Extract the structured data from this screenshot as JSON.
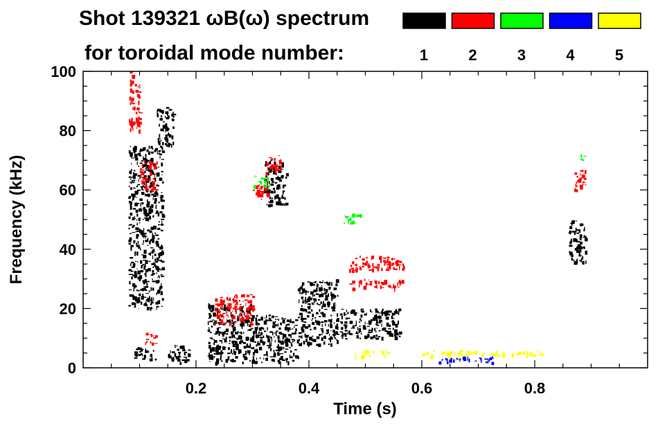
{
  "chart_data": {
    "type": "heatmap",
    "title": "Shot 139321 ωB(ω) spectrum",
    "subtitle": "for toroidal mode number:",
    "xlabel": "Time (s)",
    "ylabel": "Frequency (kHz)",
    "xlim": [
      0.0,
      1.0
    ],
    "ylim": [
      0,
      100
    ],
    "x_ticks": [
      0.2,
      0.4,
      0.6,
      0.8
    ],
    "x_tick_labels": [
      "0.2",
      "0.4",
      "0.6",
      "0.8"
    ],
    "y_ticks": [
      0,
      20,
      40,
      60,
      80,
      100
    ],
    "y_tick_labels": [
      "0",
      "20",
      "40",
      "60",
      "80",
      "100"
    ],
    "grid": false,
    "legend_placement": "top-right",
    "legend": [
      {
        "name": "1",
        "color": "#000000"
      },
      {
        "name": "2",
        "color": "#ff0000"
      },
      {
        "name": "3",
        "color": "#00ff00"
      },
      {
        "name": "4",
        "color": "#0000ff"
      },
      {
        "name": "5",
        "color": "#ffff00"
      }
    ],
    "series": [
      {
        "name": "1",
        "color": "#000000",
        "regions": [
          {
            "t": [
              0.08,
              0.14
            ],
            "f": [
              20,
              75
            ]
          },
          {
            "t": [
              0.13,
              0.16
            ],
            "f": [
              75,
              88
            ]
          },
          {
            "t": [
              0.09,
              0.13
            ],
            "f": [
              3,
              7
            ]
          },
          {
            "t": [
              0.15,
              0.19
            ],
            "f": [
              2,
              8
            ]
          },
          {
            "t": [
              0.22,
              0.3
            ],
            "f": [
              2,
              22
            ]
          },
          {
            "t": [
              0.3,
              0.38
            ],
            "f": [
              2,
              18
            ]
          },
          {
            "t": [
              0.38,
              0.45
            ],
            "f": [
              8,
              30
            ]
          },
          {
            "t": [
              0.45,
              0.56
            ],
            "f": [
              10,
              20
            ]
          },
          {
            "t": [
              0.32,
              0.36
            ],
            "f": [
              55,
              70
            ]
          },
          {
            "t": [
              0.86,
              0.89
            ],
            "f": [
              35,
              50
            ]
          }
        ]
      },
      {
        "name": "2",
        "color": "#ff0000",
        "regions": [
          {
            "t": [
              0.08,
              0.1
            ],
            "f": [
              80,
              100
            ]
          },
          {
            "t": [
              0.1,
              0.13
            ],
            "f": [
              60,
              70
            ]
          },
          {
            "t": [
              0.11,
              0.13
            ],
            "f": [
              8,
              12
            ]
          },
          {
            "t": [
              0.23,
              0.3
            ],
            "f": [
              15,
              25
            ]
          },
          {
            "t": [
              0.32,
              0.35
            ],
            "f": [
              66,
              72
            ]
          },
          {
            "t": [
              0.3,
              0.33
            ],
            "f": [
              57,
              62
            ]
          },
          {
            "t": [
              0.47,
              0.57
            ],
            "f": [
              33,
              38
            ]
          },
          {
            "t": [
              0.47,
              0.57
            ],
            "f": [
              27,
              30
            ]
          },
          {
            "t": [
              0.87,
              0.89
            ],
            "f": [
              60,
              68
            ]
          }
        ]
      },
      {
        "name": "3",
        "color": "#00ff00",
        "regions": [
          {
            "t": [
              0.3,
              0.33
            ],
            "f": [
              61,
              65
            ]
          },
          {
            "t": [
              0.46,
              0.5
            ],
            "f": [
              49,
              52
            ]
          },
          {
            "t": [
              0.88,
              0.89
            ],
            "f": [
              70,
              72
            ]
          }
        ]
      },
      {
        "name": "4",
        "color": "#0000ff",
        "regions": [
          {
            "t": [
              0.63,
              0.73
            ],
            "f": [
              2,
              4
            ]
          }
        ]
      },
      {
        "name": "5",
        "color": "#ffff00",
        "regions": [
          {
            "t": [
              0.48,
              0.54
            ],
            "f": [
              4,
              6
            ]
          },
          {
            "t": [
              0.6,
              0.82
            ],
            "f": [
              4,
              6
            ]
          }
        ]
      }
    ]
  }
}
